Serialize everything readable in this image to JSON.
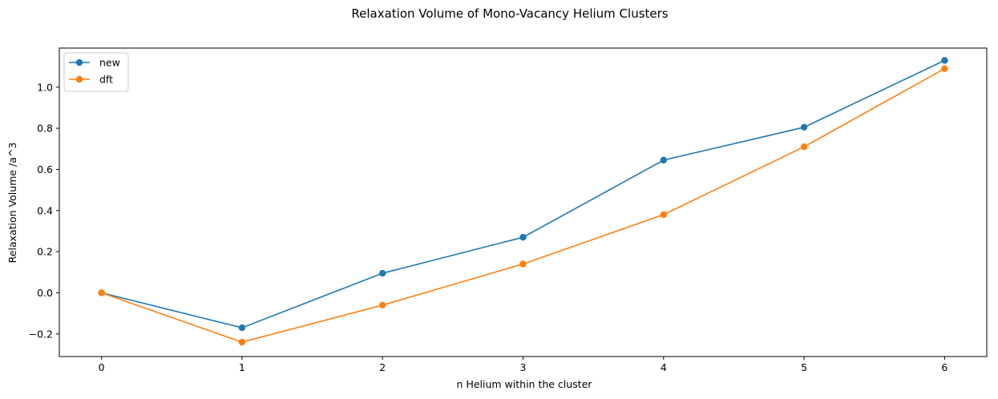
{
  "chart_data": {
    "type": "line",
    "title": "Relaxation Volume of Mono-Vacancy Helium Clusters",
    "xlabel": "n Helium within the cluster",
    "ylabel": "Relaxation Volume /a^3",
    "x": [
      0,
      1,
      2,
      3,
      4,
      5,
      6
    ],
    "xlim": [
      -0.3,
      6.3
    ],
    "ylim": [
      -0.31,
      1.19
    ],
    "xticks": [
      "0",
      "1",
      "2",
      "3",
      "4",
      "5",
      "6"
    ],
    "yticks": [
      "−0.2",
      "0.0",
      "0.2",
      "0.4",
      "0.6",
      "0.8",
      "1.0"
    ],
    "ytick_values": [
      -0.2,
      0.0,
      0.2,
      0.4,
      0.6,
      0.8,
      1.0
    ],
    "grid": false,
    "legend_position": "top-left",
    "series": [
      {
        "name": "new",
        "color": "#1f77b4",
        "values": [
          0.0,
          -0.17,
          0.095,
          0.27,
          0.645,
          0.805,
          1.13
        ]
      },
      {
        "name": "dft",
        "color": "#ff7f0e",
        "values": [
          0.0,
          -0.24,
          -0.06,
          0.14,
          0.38,
          0.71,
          1.09
        ]
      }
    ]
  }
}
